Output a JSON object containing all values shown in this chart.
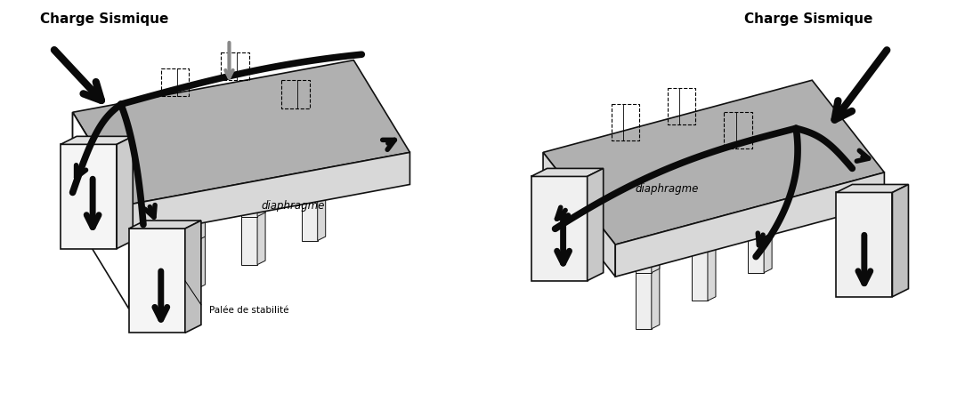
{
  "background_color": "#ffffff",
  "fig_width": 10.84,
  "fig_height": 4.51,
  "dpi": 100,
  "left_charge_label": "Charge Sismique",
  "right_charge_label": "Charge Sismique",
  "left_diaphragme": "diaphragme",
  "right_diaphragme": "diaphragme",
  "left_palee": "Palée de stabilité",
  "slab_top_color": "#b0b0b0",
  "slab_front_color": "#d8d8d8",
  "slab_right_color": "#c8c8c8",
  "col_face_color": "#e8e8e8",
  "col_side_color": "#d0d0d0",
  "wall_color": "#e0e0e0",
  "wall_side_color": "#c8c8c8",
  "arrow_color": "#0a0a0a",
  "line_color": "#111111",
  "text_color": "#000000"
}
